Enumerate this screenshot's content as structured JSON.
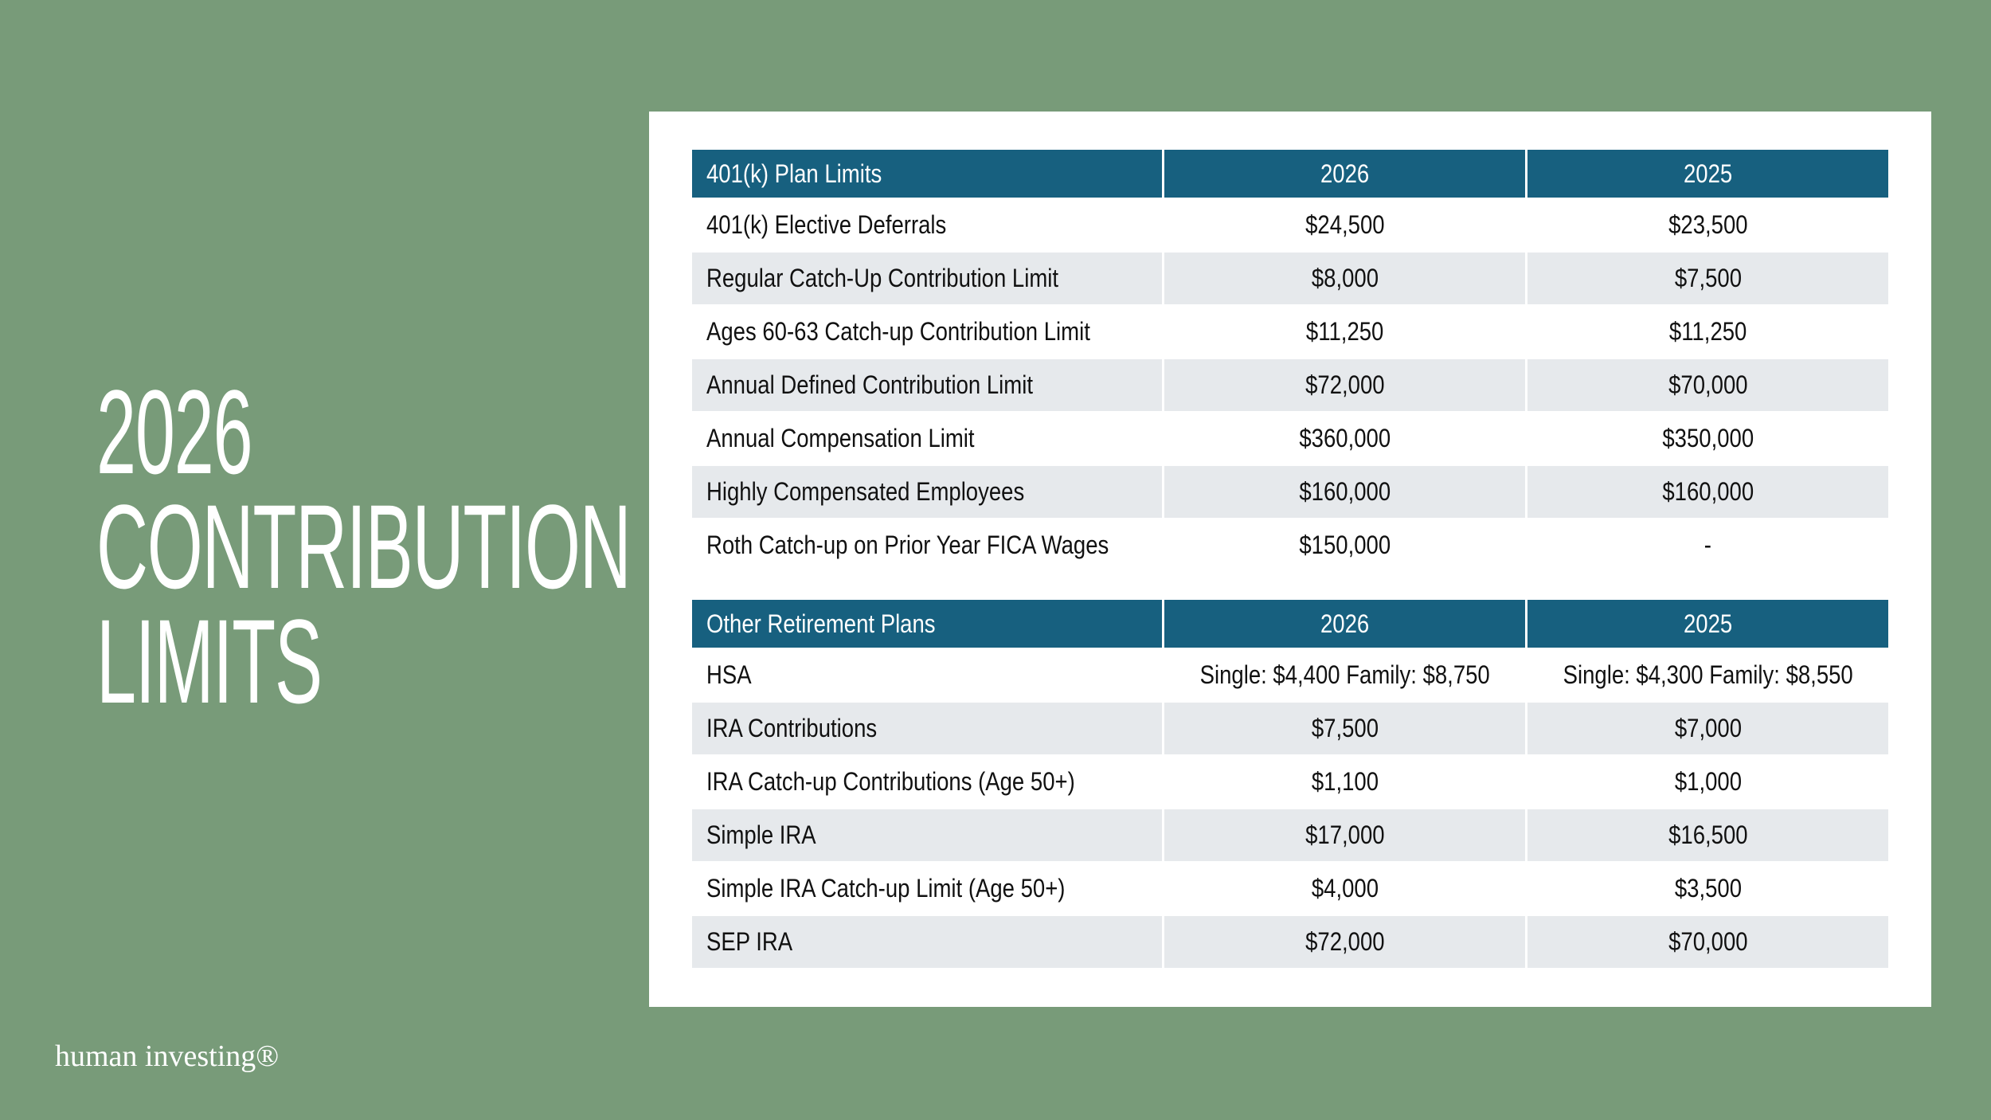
{
  "title": {
    "lines": [
      "2026",
      "CONTRIBUTION",
      "LIMITS"
    ]
  },
  "tables": [
    {
      "header": [
        "401(k) Plan Limits",
        "2026",
        "2025"
      ],
      "rows": [
        [
          "401(k) Elective Deferrals",
          "$24,500",
          "$23,500"
        ],
        [
          "Regular Catch-Up Contribution Limit",
          "$8,000",
          "$7,500"
        ],
        [
          "Ages 60-63 Catch-up Contribution Limit",
          "$11,250",
          "$11,250"
        ],
        [
          "Annual Defined Contribution Limit",
          "$72,000",
          "$70,000"
        ],
        [
          "Annual Compensation Limit",
          "$360,000",
          "$350,000"
        ],
        [
          "Highly Compensated Employees",
          "$160,000",
          "$160,000"
        ],
        [
          "Roth Catch-up on Prior Year FICA Wages",
          "$150,000",
          "-"
        ]
      ]
    },
    {
      "header": [
        "Other Retirement Plans",
        "2026",
        "2025"
      ],
      "rows": [
        [
          "HSA",
          "Single: $4,400 Family: $8,750",
          "Single: $4,300 Family: $8,550"
        ],
        [
          "IRA Contributions",
          "$7,500",
          "$7,000"
        ],
        [
          "IRA Catch-up Contributions (Age 50+)",
          "$1,100",
          "$1,000"
        ],
        [
          "Simple IRA",
          "$17,000",
          "$16,500"
        ],
        [
          "Simple IRA Catch-up Limit (Age 50+)",
          "$4,000",
          "$3,500"
        ],
        [
          "SEP IRA",
          "$72,000",
          "$70,000"
        ]
      ]
    }
  ],
  "logo": "human investing®"
}
